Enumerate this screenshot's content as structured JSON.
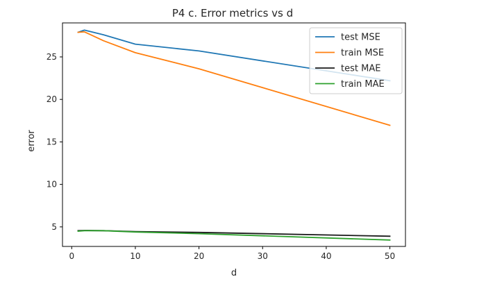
{
  "chart_data": {
    "type": "line",
    "title": "P4 c. Error metrics vs d",
    "xlabel": "d",
    "ylabel": "error",
    "xlim": [
      -1.45,
      52.45
    ],
    "ylim": [
      2.7,
      29.0
    ],
    "xticks": [
      0,
      10,
      20,
      30,
      40,
      50
    ],
    "yticks": [
      5,
      10,
      15,
      20,
      25
    ],
    "grid": false,
    "legend_position": "top-right",
    "series": [
      {
        "name": "test MSE",
        "color": "#1f77b4",
        "x": [
          1,
          2,
          5,
          10,
          20,
          50
        ],
        "y": [
          27.9,
          28.15,
          27.6,
          26.5,
          25.7,
          22.2
        ]
      },
      {
        "name": "train MSE",
        "color": "#ff7f0e",
        "x": [
          1,
          2,
          5,
          10,
          20,
          50
        ],
        "y": [
          27.9,
          27.95,
          26.9,
          25.5,
          23.6,
          16.95
        ]
      },
      {
        "name": "test MAE",
        "color": "#1a1a1a",
        "x": [
          1,
          2,
          5,
          10,
          20,
          50
        ],
        "y": [
          4.55,
          4.58,
          4.55,
          4.45,
          4.35,
          3.9
        ]
      },
      {
        "name": "train MAE",
        "color": "#2ca02c",
        "x": [
          1,
          2,
          5,
          10,
          20,
          50
        ],
        "y": [
          4.5,
          4.55,
          4.55,
          4.4,
          4.2,
          3.45
        ]
      }
    ]
  }
}
